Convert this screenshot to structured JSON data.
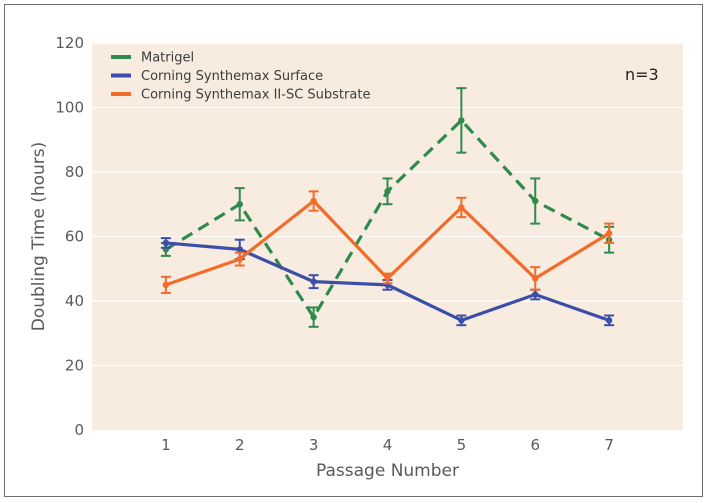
{
  "chart_data": {
    "type": "line",
    "title": "",
    "xlabel": "Passage Number",
    "ylabel": "Doubling Time (hours)",
    "x": [
      1,
      2,
      3,
      4,
      5,
      6,
      7
    ],
    "xlim": [
      0,
      8
    ],
    "ylim": [
      0,
      120
    ],
    "yticks": [
      0,
      20,
      40,
      60,
      80,
      100,
      120
    ],
    "grid": "horizontal",
    "legend": "top-left",
    "annotation": "n=3",
    "series": [
      {
        "name": "Matrigel",
        "color": "#2e8b4b",
        "style": "dashed",
        "values": [
          56,
          70,
          35,
          74,
          96,
          71,
          59
        ],
        "errors": [
          2,
          5,
          3,
          4,
          10,
          7,
          4
        ]
      },
      {
        "name": "Corning Synthemax Surface",
        "color": "#3b4fa8",
        "style": "solid",
        "values": [
          58,
          56,
          46,
          45,
          34,
          42,
          34
        ],
        "errors": [
          1.5,
          3,
          2,
          1.5,
          1.5,
          1.5,
          1.5
        ]
      },
      {
        "name": "Corning Synthemax II-SC Substrate",
        "color": "#f26b2a",
        "style": "solid",
        "values": [
          45,
          53,
          71,
          47,
          69,
          47,
          61
        ],
        "errors": [
          2.5,
          2,
          3,
          1.5,
          3,
          3.5,
          3
        ]
      }
    ]
  }
}
